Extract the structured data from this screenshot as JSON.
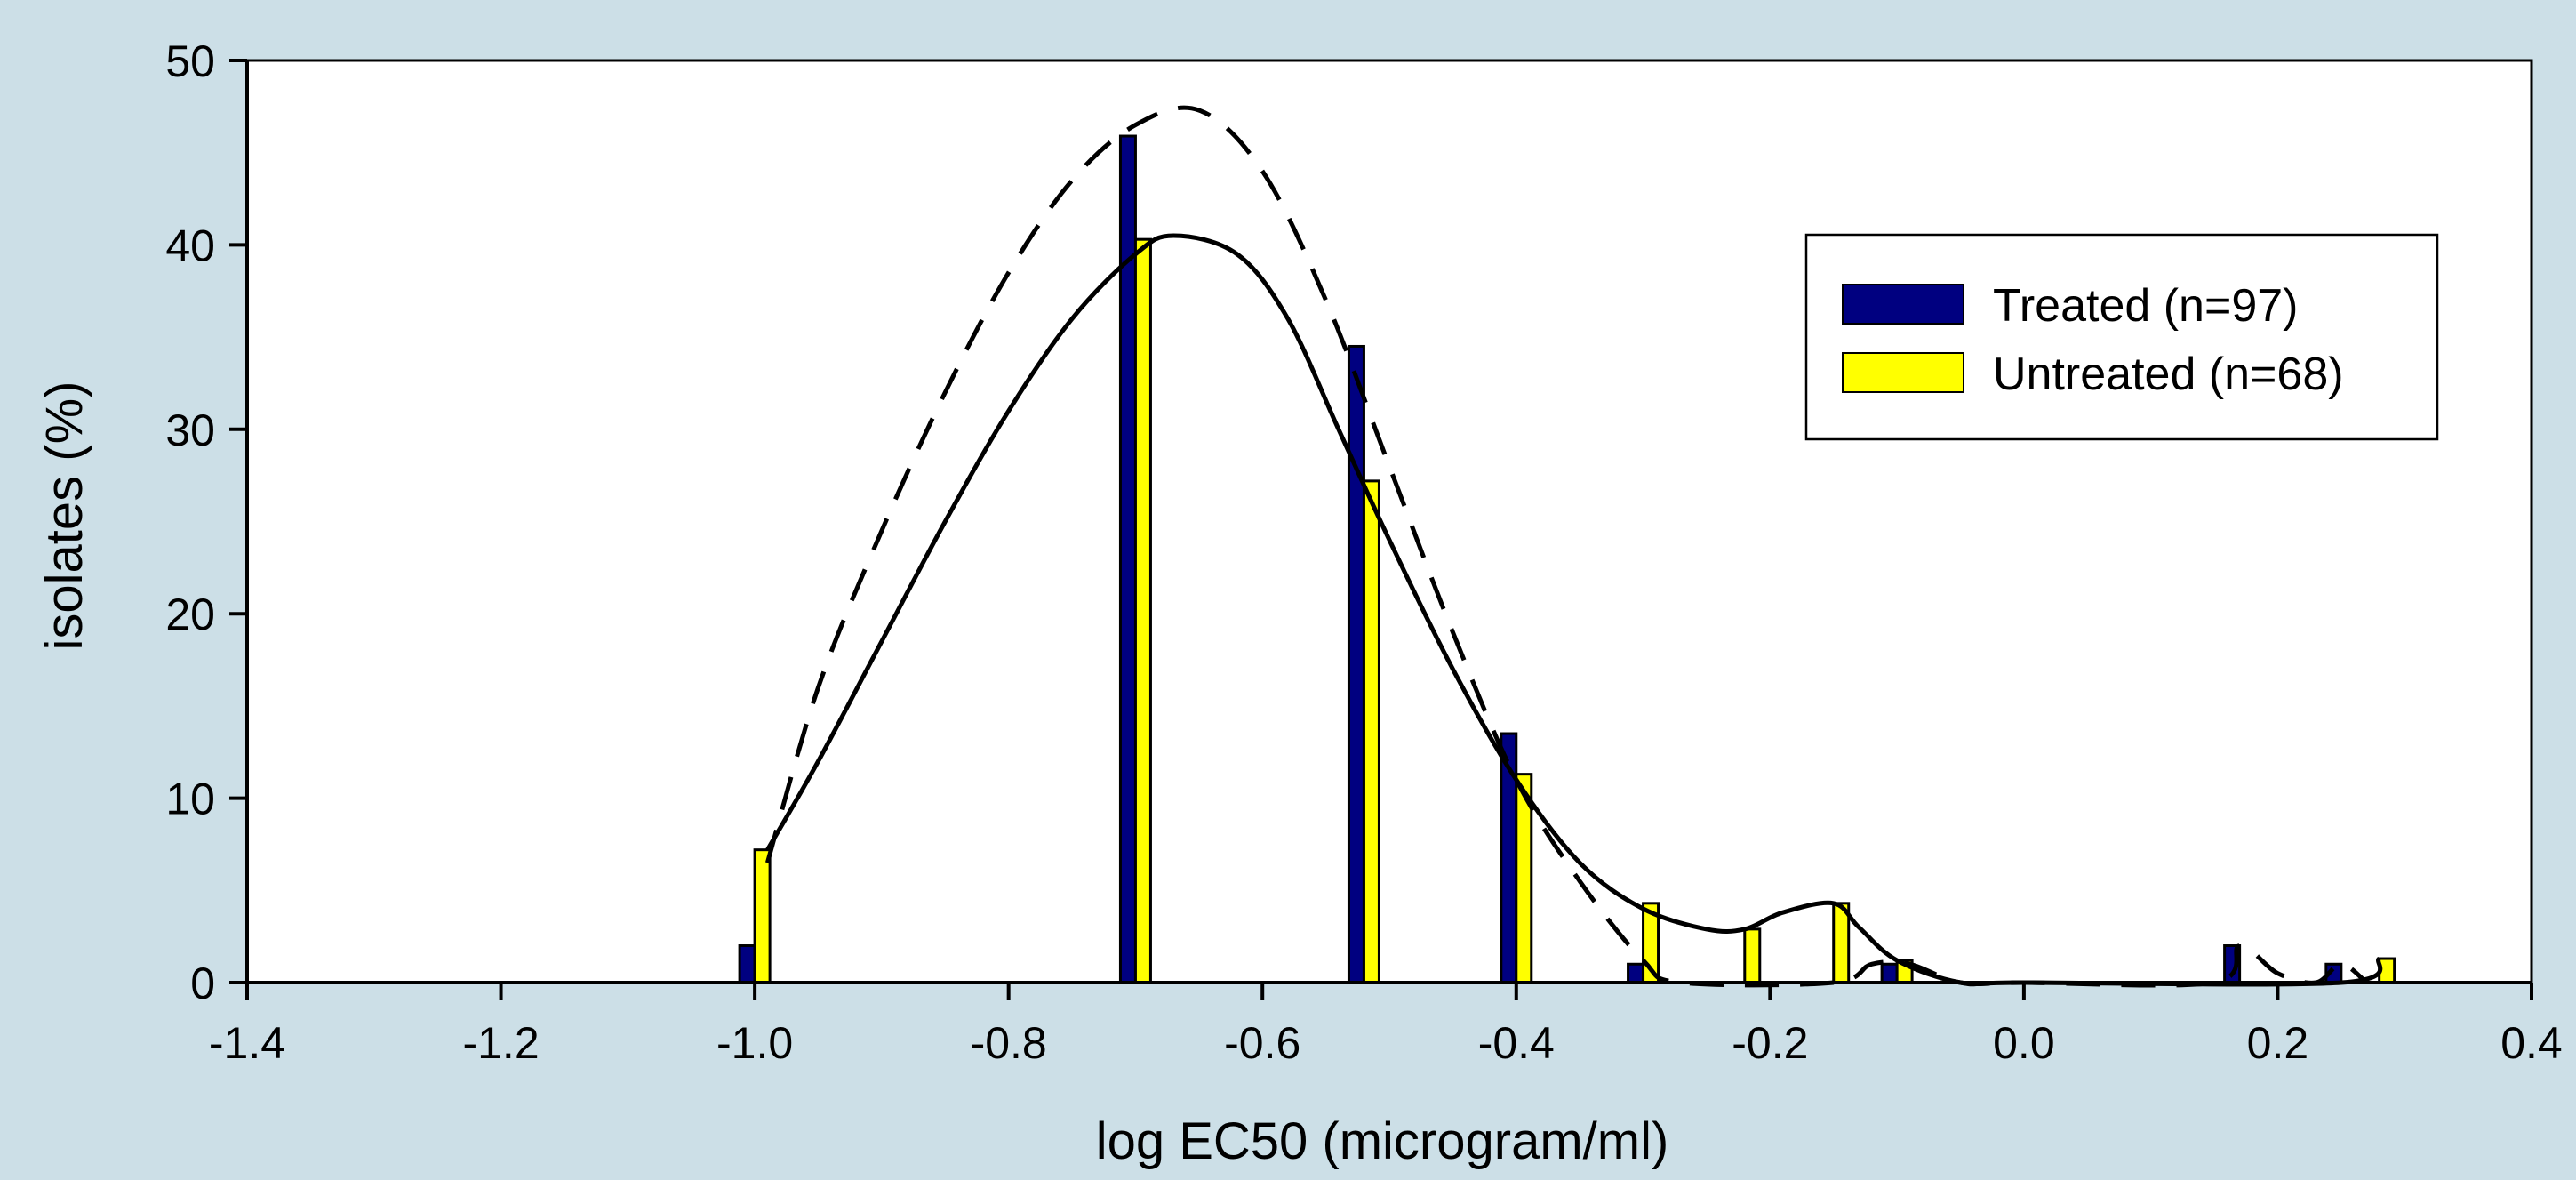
{
  "chart_data": {
    "type": "bar",
    "xlabel": "log EC50 (microgram/ml)",
    "ylabel": "isolates (%)",
    "xlim": [
      -1.4,
      0.4
    ],
    "ylim": [
      0,
      50
    ],
    "x_ticks": [
      "-1.4",
      "-1.2",
      "-1.0",
      "-0.8",
      "-0.6",
      "-0.4",
      "-0.2",
      "0.0",
      "0.2",
      "0.4"
    ],
    "y_ticks": [
      "0",
      "10",
      "20",
      "30",
      "40",
      "50"
    ],
    "grid": false,
    "legend_position": "top-right",
    "series": [
      {
        "name": "Treated (n=97)",
        "color": "#000080",
        "bars": [
          {
            "x": -1.0,
            "y": 2
          },
          {
            "x": -0.7,
            "y": 45.9
          },
          {
            "x": -0.52,
            "y": 34.5
          },
          {
            "x": -0.4,
            "y": 13.5
          },
          {
            "x": -0.3,
            "y": 1
          },
          {
            "x": -0.1,
            "y": 1
          },
          {
            "x": 0.17,
            "y": 2
          },
          {
            "x": 0.25,
            "y": 1
          }
        ],
        "fit_curve_style": "dashed",
        "fit_curve": [
          {
            "x": -0.99,
            "y": 6.5
          },
          {
            "x": -0.95,
            "y": 16
          },
          {
            "x": -0.9,
            "y": 24.5
          },
          {
            "x": -0.85,
            "y": 32
          },
          {
            "x": -0.8,
            "y": 38.5
          },
          {
            "x": -0.75,
            "y": 43.5
          },
          {
            "x": -0.7,
            "y": 46.5
          },
          {
            "x": -0.65,
            "y": 47.3
          },
          {
            "x": -0.6,
            "y": 44
          },
          {
            "x": -0.55,
            "y": 37
          },
          {
            "x": -0.5,
            "y": 28
          },
          {
            "x": -0.45,
            "y": 19
          },
          {
            "x": -0.4,
            "y": 11
          },
          {
            "x": -0.35,
            "y": 5.5
          },
          {
            "x": -0.3,
            "y": 1.2
          },
          {
            "x": -0.27,
            "y": 0
          },
          {
            "x": -0.15,
            "y": 0
          },
          {
            "x": -0.12,
            "y": 1
          },
          {
            "x": -0.09,
            "y": 1
          },
          {
            "x": -0.05,
            "y": 0
          },
          {
            "x": 0.0,
            "y": 0
          },
          {
            "x": 0.15,
            "y": 0
          },
          {
            "x": 0.17,
            "y": 2
          },
          {
            "x": 0.2,
            "y": 0.5
          },
          {
            "x": 0.23,
            "y": 0
          },
          {
            "x": 0.25,
            "y": 1
          },
          {
            "x": 0.27,
            "y": 0
          }
        ]
      },
      {
        "name": "Untreated (n=68)",
        "color": "#ffff00",
        "bars": [
          {
            "x": -1.0,
            "y": 7.2
          },
          {
            "x": -0.7,
            "y": 40.3
          },
          {
            "x": -0.52,
            "y": 27.2
          },
          {
            "x": -0.4,
            "y": 11.3
          },
          {
            "x": -0.3,
            "y": 4.3
          },
          {
            "x": -0.22,
            "y": 2.9
          },
          {
            "x": -0.15,
            "y": 4.3
          },
          {
            "x": -0.1,
            "y": 1.2
          },
          {
            "x": 0.28,
            "y": 1.3
          }
        ],
        "fit_curve_style": "solid",
        "fit_curve": [
          {
            "x": -0.99,
            "y": 7.2
          },
          {
            "x": -0.95,
            "y": 12
          },
          {
            "x": -0.9,
            "y": 18.5
          },
          {
            "x": -0.85,
            "y": 25
          },
          {
            "x": -0.8,
            "y": 31
          },
          {
            "x": -0.75,
            "y": 36
          },
          {
            "x": -0.7,
            "y": 39.5
          },
          {
            "x": -0.67,
            "y": 40.5
          },
          {
            "x": -0.62,
            "y": 39.5
          },
          {
            "x": -0.58,
            "y": 36
          },
          {
            "x": -0.54,
            "y": 30
          },
          {
            "x": -0.5,
            "y": 24
          },
          {
            "x": -0.45,
            "y": 17
          },
          {
            "x": -0.4,
            "y": 11
          },
          {
            "x": -0.35,
            "y": 6.5
          },
          {
            "x": -0.3,
            "y": 4
          },
          {
            "x": -0.25,
            "y": 2.9
          },
          {
            "x": -0.22,
            "y": 2.9
          },
          {
            "x": -0.19,
            "y": 3.8
          },
          {
            "x": -0.15,
            "y": 4.3
          },
          {
            "x": -0.13,
            "y": 3
          },
          {
            "x": -0.1,
            "y": 1.2
          },
          {
            "x": -0.05,
            "y": 0
          },
          {
            "x": 0.0,
            "y": 0
          },
          {
            "x": 0.25,
            "y": 0
          },
          {
            "x": 0.28,
            "y": 1.3
          }
        ]
      }
    ]
  }
}
